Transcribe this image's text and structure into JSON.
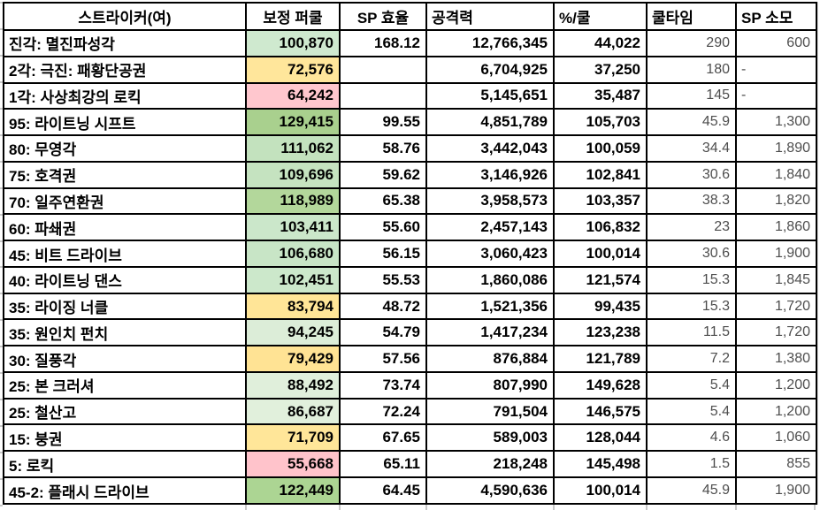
{
  "table": {
    "headers": [
      {
        "label": "스트라이커(여)"
      },
      {
        "label": "보정 퍼쿨"
      },
      {
        "label": "SP 효율"
      },
      {
        "label": "공격력"
      },
      {
        "label": "%/쿨"
      },
      {
        "label": "쿨타임"
      },
      {
        "label": "SP 소모"
      }
    ],
    "rows": [
      {
        "name": "진각: 멸진파성각",
        "pct": "100,870",
        "pct_bg": "#CFE9CF",
        "sp_eff": "168.12",
        "attack": "12,766,345",
        "pct_per_cool": "44,022",
        "cooldown": "290",
        "sp_cost": "600"
      },
      {
        "name": "2각: 극진: 패황단공권",
        "pct": "72,576",
        "pct_bg": "#FFE69B",
        "sp_eff": "",
        "attack": "6,704,925",
        "pct_per_cool": "37,250",
        "cooldown": "180",
        "sp_cost": "-"
      },
      {
        "name": "1각: 사상최강의 로킥",
        "pct": "64,242",
        "pct_bg": "#FFC7CE",
        "sp_eff": "",
        "attack": "5,145,651",
        "pct_per_cool": "35,487",
        "cooldown": "145",
        "sp_cost": "-"
      },
      {
        "name": "95: 라이트닝 시프트",
        "pct": "129,415",
        "pct_bg": "#A9D08E",
        "sp_eff": "99.55",
        "attack": "4,851,789",
        "pct_per_cool": "105,703",
        "cooldown": "45.9",
        "sp_cost": "1,300"
      },
      {
        "name": "80: 무영각",
        "pct": "111,062",
        "pct_bg": "#C3E2BE",
        "sp_eff": "58.76",
        "attack": "3,442,043",
        "pct_per_cool": "100,059",
        "cooldown": "34.4",
        "sp_cost": "1,890"
      },
      {
        "name": "75: 호격권",
        "pct": "109,696",
        "pct_bg": "#C5E3C0",
        "sp_eff": "59.62",
        "attack": "3,146,926",
        "pct_per_cool": "102,841",
        "cooldown": "30.6",
        "sp_cost": "1,840"
      },
      {
        "name": "70: 일주연환권",
        "pct": "118,989",
        "pct_bg": "#B3D79B",
        "sp_eff": "65.38",
        "attack": "3,958,573",
        "pct_per_cool": "103,357",
        "cooldown": "38.3",
        "sp_cost": "1,820"
      },
      {
        "name": "60: 파쇄권",
        "pct": "103,411",
        "pct_bg": "#CBE7CA",
        "sp_eff": "55.60",
        "attack": "2,457,143",
        "pct_per_cool": "106,832",
        "cooldown": "23",
        "sp_cost": "1,860"
      },
      {
        "name": "45: 비트 드라이브",
        "pct": "106,680",
        "pct_bg": "#C8E5C6",
        "sp_eff": "56.15",
        "attack": "3,060,423",
        "pct_per_cool": "100,014",
        "cooldown": "30.6",
        "sp_cost": "1,900"
      },
      {
        "name": "40: 라이트닝 댄스",
        "pct": "102,451",
        "pct_bg": "#CCE8CB",
        "sp_eff": "55.53",
        "attack": "1,860,086",
        "pct_per_cool": "121,574",
        "cooldown": "15.3",
        "sp_cost": "1,845"
      },
      {
        "name": "35: 라이징 너클",
        "pct": "83,794",
        "pct_bg": "#FFE597",
        "sp_eff": "48.72",
        "attack": "1,521,356",
        "pct_per_cool": "99,435",
        "cooldown": "15.3",
        "sp_cost": "1,720"
      },
      {
        "name": "35: 원인치 펀치",
        "pct": "94,245",
        "pct_bg": "#DCEDD8",
        "sp_eff": "54.79",
        "attack": "1,417,234",
        "pct_per_cool": "123,238",
        "cooldown": "11.5",
        "sp_cost": "1,720"
      },
      {
        "name": "30: 질풍각",
        "pct": "79,429",
        "pct_bg": "#FFE394",
        "sp_eff": "57.56",
        "attack": "876,884",
        "pct_per_cool": "121,789",
        "cooldown": "7.2",
        "sp_cost": "1,380"
      },
      {
        "name": "25: 본 크러셔",
        "pct": "88,492",
        "pct_bg": "#E0EFDB",
        "sp_eff": "73.74",
        "attack": "807,990",
        "pct_per_cool": "149,628",
        "cooldown": "5.4",
        "sp_cost": "1,200"
      },
      {
        "name": "25: 철산고",
        "pct": "86,687",
        "pct_bg": "#E1F0DC",
        "sp_eff": "72.24",
        "attack": "791,504",
        "pct_per_cool": "146,575",
        "cooldown": "5.4",
        "sp_cost": "1,200"
      },
      {
        "name": "15: 붕권",
        "pct": "71,709",
        "pct_bg": "#FFE699",
        "sp_eff": "67.65",
        "attack": "589,003",
        "pct_per_cool": "128,044",
        "cooldown": "4.6",
        "sp_cost": "1,060"
      },
      {
        "name": "5: 로킥",
        "pct": "55,668",
        "pct_bg": "#FFC3CB",
        "sp_eff": "65.11",
        "attack": "218,248",
        "pct_per_cool": "145,498",
        "cooldown": "1.5",
        "sp_cost": "855"
      },
      {
        "name": "45-2: 플래시 드라이브",
        "pct": "122,449",
        "pct_bg": "#ACD593",
        "sp_eff": "64.45",
        "attack": "4,590,636",
        "pct_per_cool": "100,014",
        "cooldown": "45.9",
        "sp_cost": "1,900"
      }
    ]
  },
  "colors": {
    "border": "#000000",
    "muted_text": "#4d4d4d",
    "green_high": "#A9D08E",
    "green_mid": "#C8E5C6",
    "green_low": "#E1F0DC",
    "yellow": "#FFE699",
    "pink": "#FFC7CE"
  }
}
